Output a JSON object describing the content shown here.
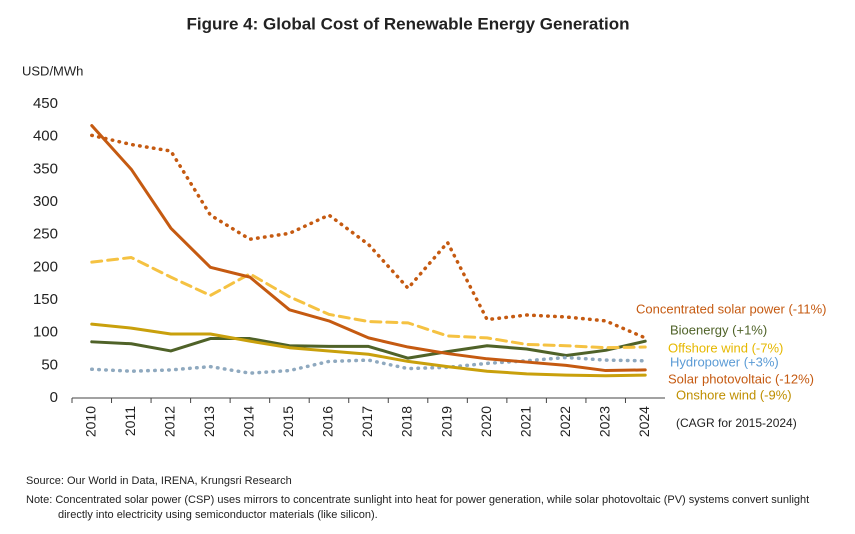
{
  "chart_data": {
    "type": "line",
    "title": "Figure 4: Global Cost of Renewable Energy Generation",
    "y_label": "USD/MWh",
    "annotation": "(CAGR for 2015-2024)",
    "source": "Source: Our World in Data, IRENA, Krungsri Research",
    "note": "Note: Concentrated solar power (CSP) uses mirrors to concentrate sunlight into heat for power generation, while solar photovoltaic (PV) systems convert sunlight directly into electricity using semiconductor materials (like silicon).",
    "categories": [
      "2010",
      "2011",
      "2012",
      "2013",
      "2014",
      "2015",
      "2016",
      "2017",
      "2018",
      "2019",
      "2020",
      "2021",
      "2022",
      "2023",
      "2024"
    ],
    "ylim": [
      0,
      450
    ],
    "yticks": [
      0,
      50,
      100,
      150,
      200,
      250,
      300,
      350,
      400,
      450
    ],
    "series": [
      {
        "name": "Concentrated solar power (-11%)",
        "color": "#c55a11",
        "style": "dotted",
        "values": [
          402,
          388,
          378,
          280,
          243,
          252,
          280,
          235,
          168,
          238,
          120,
          127,
          124,
          118,
          92
        ]
      },
      {
        "name": "Bioenergy (+1%)",
        "color": "#4f6228",
        "style": "solid",
        "values": [
          86,
          83,
          72,
          91,
          91,
          80,
          79,
          79,
          61,
          71,
          80,
          75,
          65,
          73,
          87
        ]
      },
      {
        "name": "Offshore wind (-7%)",
        "color": "#f5c242",
        "style": "dashed",
        "values": [
          208,
          215,
          185,
          157,
          190,
          155,
          128,
          117,
          115,
          95,
          92,
          82,
          80,
          77,
          78
        ]
      },
      {
        "name": "Hydropower (+3%)",
        "color": "#8fa9bf",
        "style": "dotted",
        "values": [
          44,
          41,
          43,
          48,
          38,
          42,
          56,
          58,
          45,
          47,
          53,
          57,
          62,
          58,
          57
        ]
      },
      {
        "name": "Solar photovoltaic (-12%)",
        "color": "#c55a11",
        "style": "solid",
        "values": [
          417,
          350,
          260,
          200,
          185,
          135,
          118,
          92,
          78,
          68,
          60,
          55,
          50,
          42,
          43
        ]
      },
      {
        "name": "Onshore wind (-9%)",
        "color": "#c9a00c",
        "style": "solid",
        "values": [
          113,
          107,
          98,
          98,
          87,
          77,
          72,
          67,
          56,
          48,
          41,
          37,
          35,
          34,
          35
        ]
      }
    ]
  }
}
